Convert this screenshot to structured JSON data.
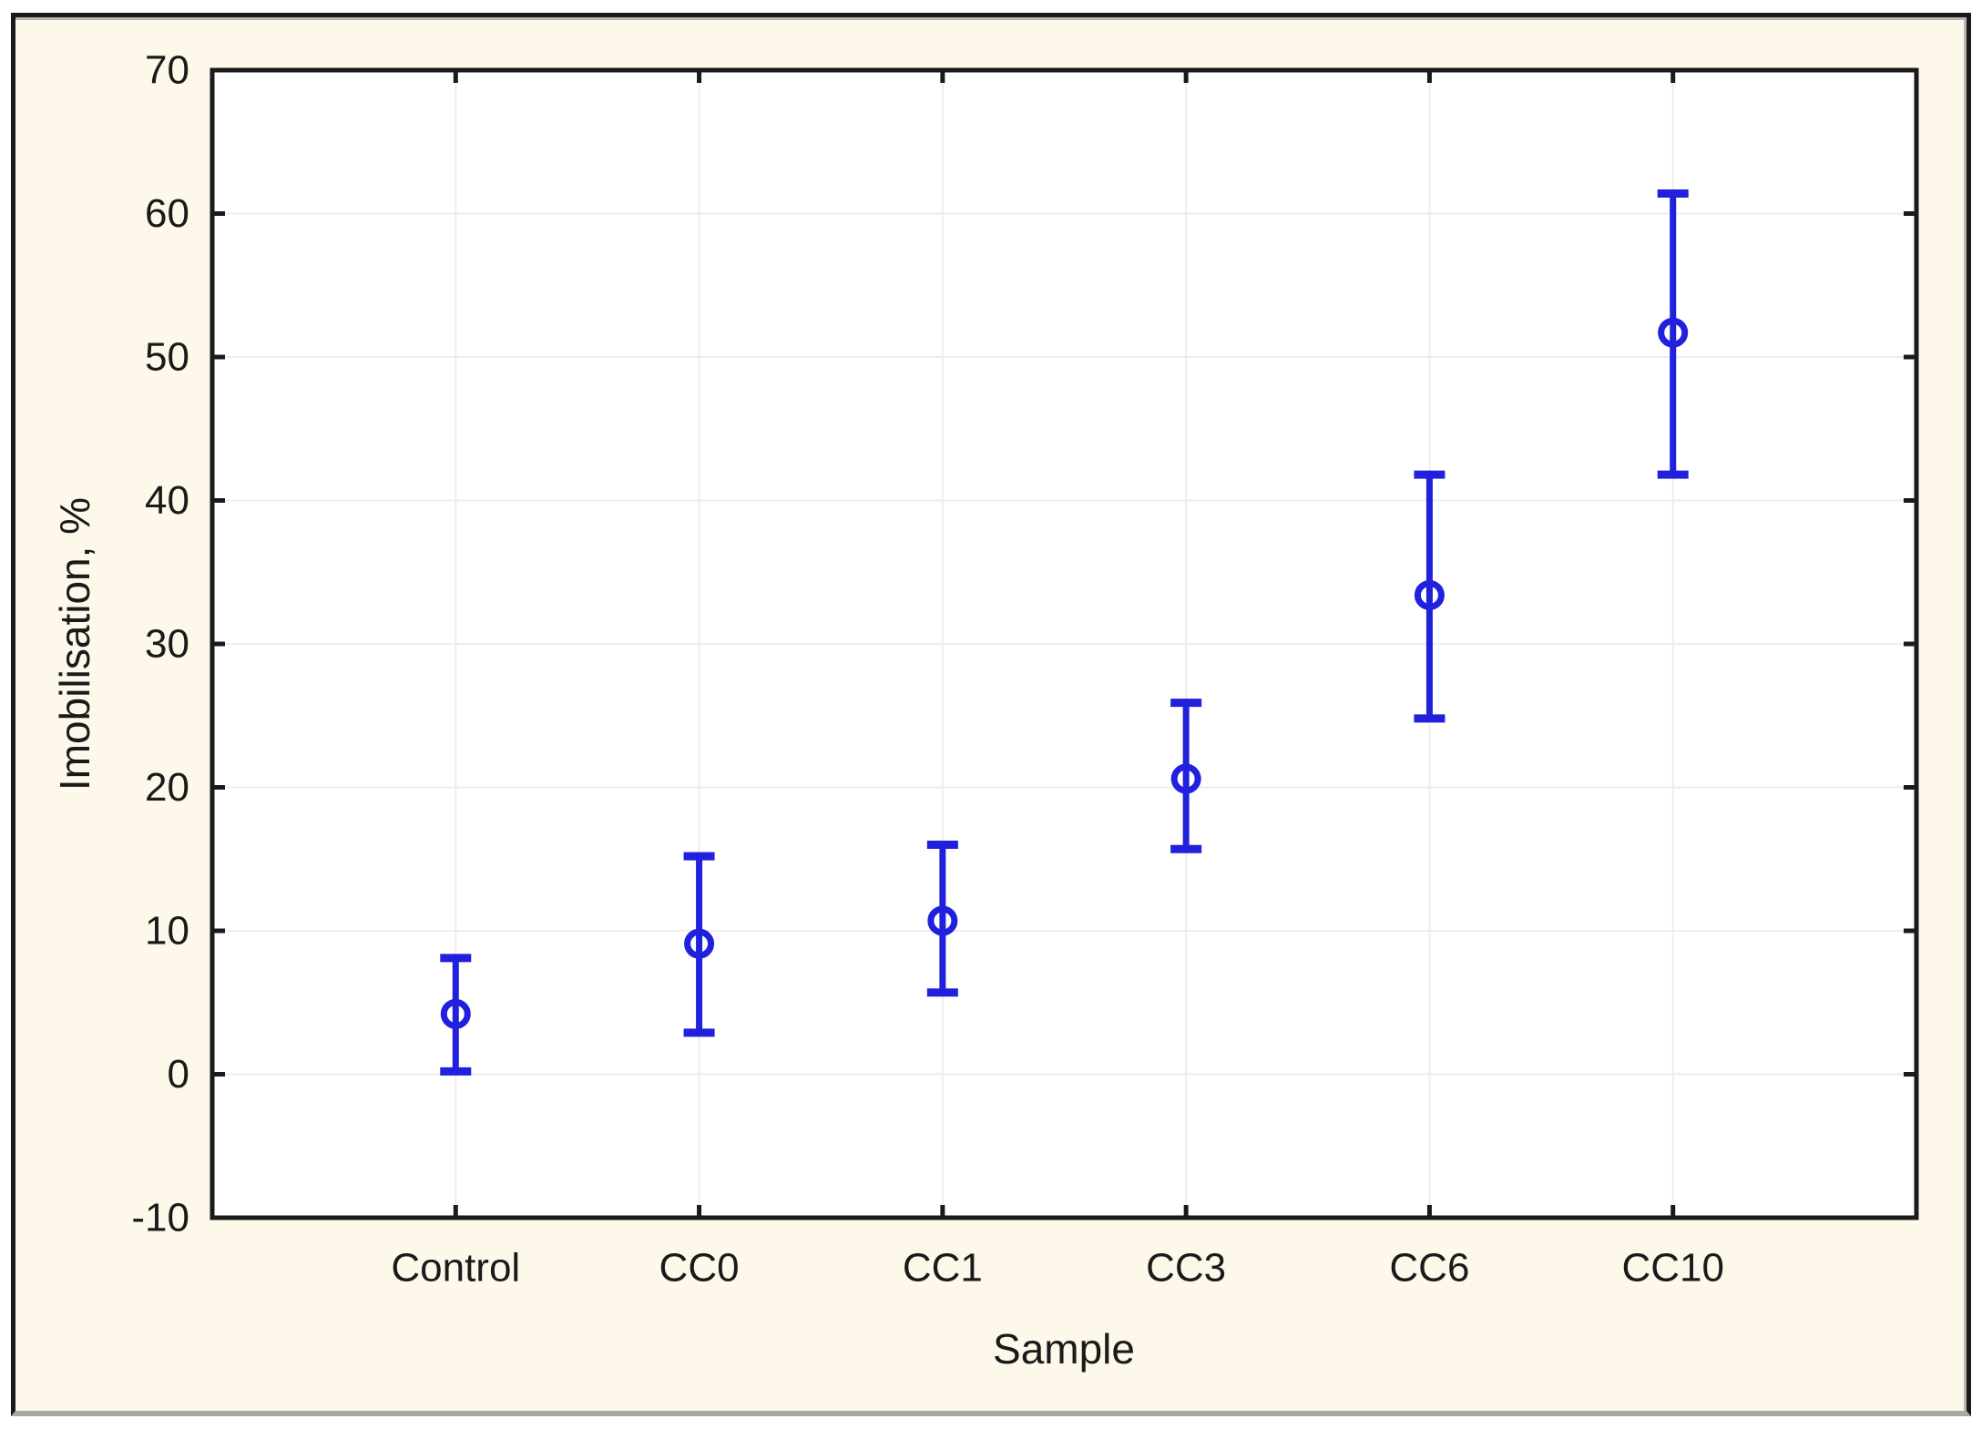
{
  "chart_data": {
    "type": "scatter",
    "subtype": "mean-error-bars",
    "title": "",
    "xlabel": "Sample",
    "ylabel": "Imobilisation, %",
    "categories": [
      "Control",
      "CC0",
      "CC1",
      "CC3",
      "CC6",
      "CC10"
    ],
    "series": [
      {
        "name": "Imobilisation",
        "means": [
          4.2,
          9.1,
          10.7,
          20.6,
          33.4,
          51.7
        ],
        "lower": [
          0.2,
          2.9,
          5.7,
          15.7,
          24.8,
          41.8
        ],
        "upper": [
          8.1,
          15.2,
          16.0,
          25.9,
          41.8,
          61.4
        ]
      }
    ],
    "ylim": [
      -10,
      70
    ],
    "ytick_step": 10,
    "ytick_labels": [
      "-10",
      "0",
      "10",
      "20",
      "30",
      "40",
      "50",
      "60",
      "70"
    ],
    "grid": true,
    "legend": "none",
    "marker": "open-circle",
    "colors": {
      "point": "#2020dd",
      "frame": "#1a1a1a",
      "grid": "#ededed",
      "plot_bg": "#ffffff",
      "panel_bg": "#fdf8ea",
      "panel_shadow": "#a9a9a1"
    }
  }
}
